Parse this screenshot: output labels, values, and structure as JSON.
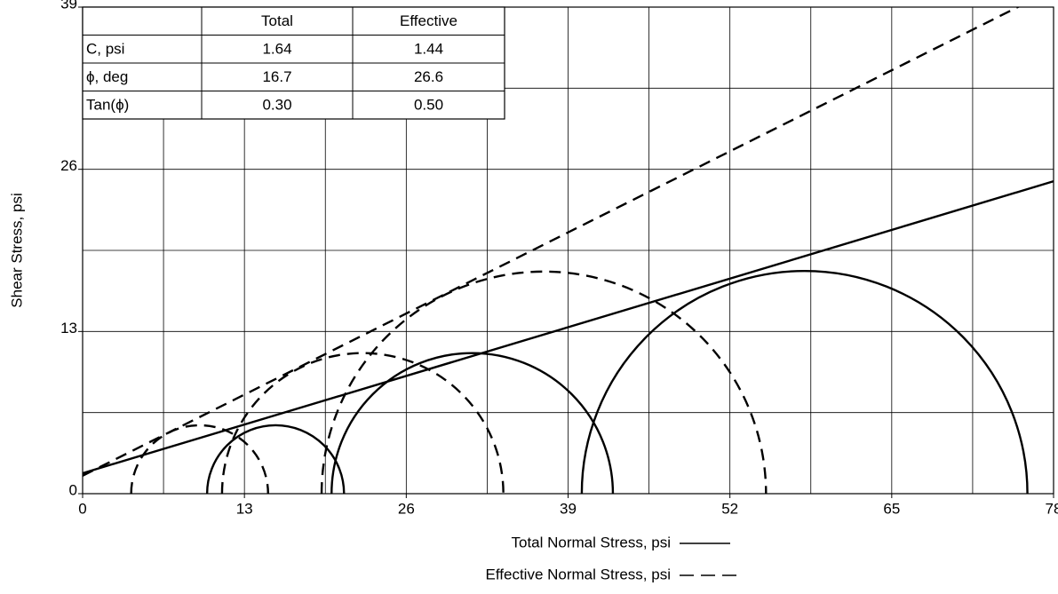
{
  "chart_data": {
    "type": "mohr",
    "ylabel": "Shear Stress, psi",
    "xlim": [
      0,
      78
    ],
    "ylim": [
      0,
      39
    ],
    "xticks": [
      0,
      13,
      26,
      39,
      52,
      65,
      78
    ],
    "yticks": [
      0,
      13,
      26,
      39
    ],
    "grid": true,
    "grid_step": 6.5,
    "series": [
      {
        "name": "Total Normal Stress, psi",
        "color": "#000000",
        "dashed": false,
        "circles": [
          {
            "sigma3": 10.0,
            "sigma1": 21.0
          },
          {
            "sigma3": 20.0,
            "sigma1": 42.6
          },
          {
            "sigma3": 40.1,
            "sigma1": 75.9
          }
        ],
        "envelope": {
          "c": 1.64,
          "tan_phi": 0.3
        }
      },
      {
        "name": "Effective Normal Stress, psi",
        "color": "#000000",
        "dashed": true,
        "circles": [
          {
            "sigma3": 3.9,
            "sigma1": 14.9
          },
          {
            "sigma3": 11.2,
            "sigma1": 33.8
          },
          {
            "sigma3": 19.2,
            "sigma1": 54.9
          }
        ],
        "envelope": {
          "c": 1.44,
          "tan_phi": 0.5
        }
      }
    ]
  },
  "table": {
    "columns": [
      "Total",
      "Effective"
    ],
    "rows": [
      {
        "label": "C, psi",
        "cells": [
          "1.64",
          "1.44"
        ]
      },
      {
        "label": "ϕ, deg",
        "cells": [
          "16.7",
          "26.6"
        ]
      },
      {
        "label": "Tan(ϕ)",
        "cells": [
          "0.30",
          "0.50"
        ]
      }
    ]
  }
}
